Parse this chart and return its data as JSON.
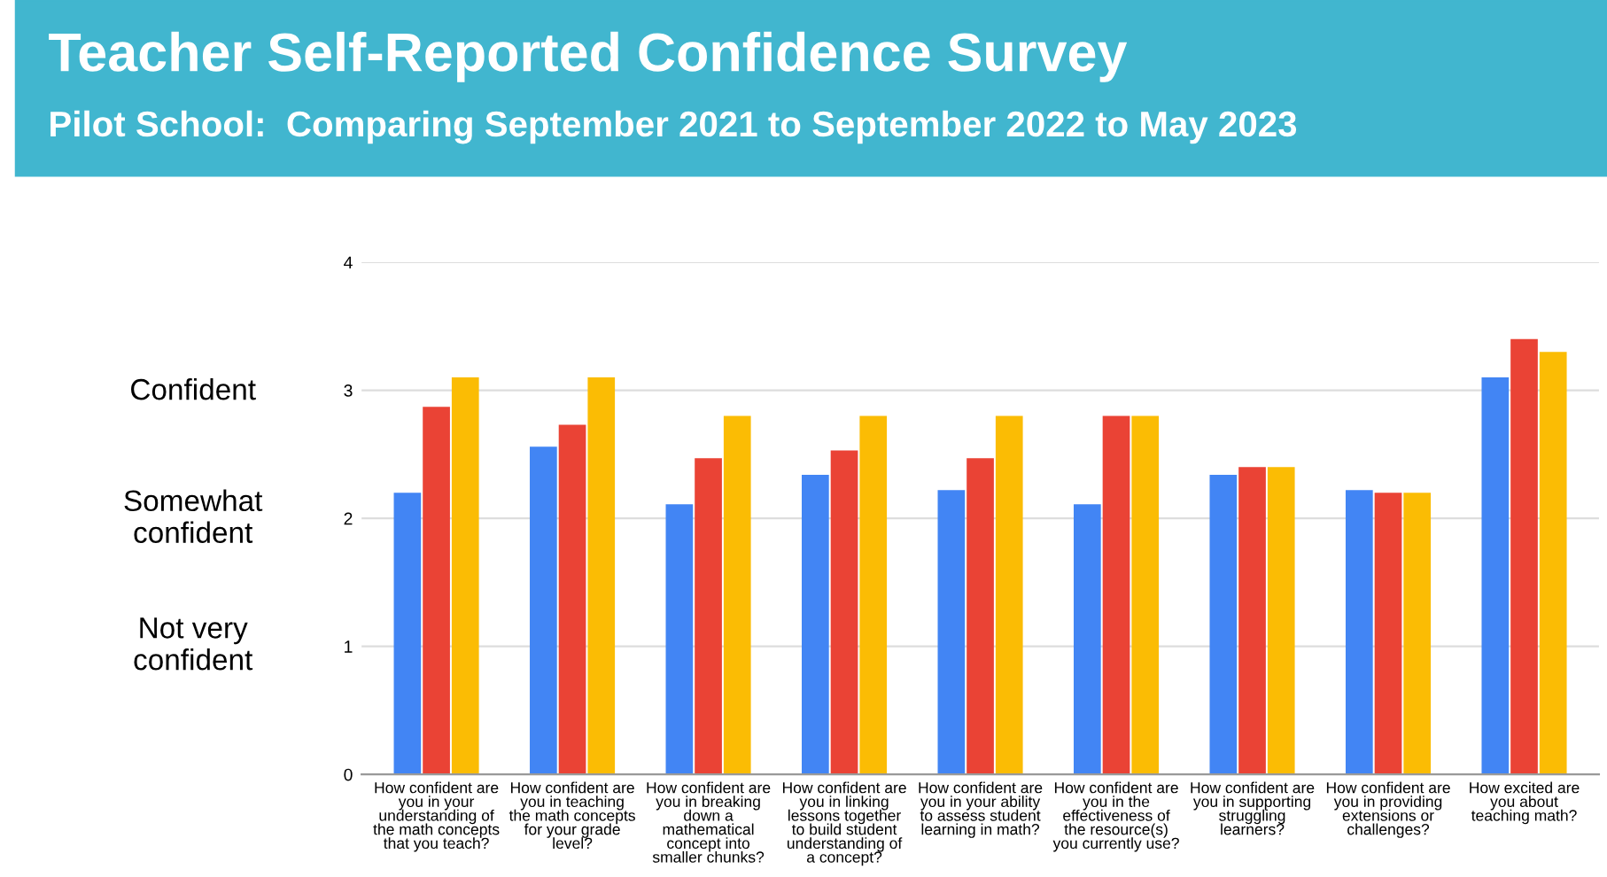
{
  "chart_data": {
    "type": "bar",
    "title": "Teacher Self-Reported Confidence Survey",
    "subtitle": "Pilot School:  Comparing September 2021 to September 2022 to May 2023",
    "categories": [
      "How confident are\nyou in your\nunderstanding of\nthe math concepts\nthat you teach?",
      "How confident are\nyou in teaching\nthe math concepts\nfor your grade\nlevel?",
      "How confident are\nyou in breaking\ndown a\nmathematical\nconcept into\nsmaller chunks?",
      "How confident are\nyou in linking\nlessons together\nto build student\nunderstanding of\na concept?",
      "How confident are\nyou in your ability\nto assess student\nlearning in math?",
      "How confident are\nyou in the\neffectiveness of\nthe resource(s)\nyou currently use?",
      "How confident are\nyou in supporting\nstruggling\nlearners?",
      "How confident are\nyou in providing\nextensions or\nchallenges?",
      "How excited are\nyou about\nteaching math?"
    ],
    "series": [
      {
        "color": "#4285f4",
        "values": [
          2.2,
          2.56,
          2.11,
          2.34,
          2.22,
          2.11,
          2.34,
          2.22,
          3.1
        ]
      },
      {
        "color": "#ea4335",
        "values": [
          2.87,
          2.73,
          2.47,
          2.53,
          2.47,
          2.8,
          2.4,
          2.2,
          3.4
        ]
      },
      {
        "color": "#fbbc04",
        "values": [
          3.1,
          3.1,
          2.8,
          2.8,
          2.8,
          2.8,
          2.4,
          2.2,
          3.3
        ]
      }
    ],
    "ylim": [
      0,
      4
    ],
    "yticks": [
      0,
      1,
      2,
      3,
      4
    ],
    "grid": "y",
    "annotations": [
      "Confident",
      "Somewhat\nconfident",
      "Not very\nconfident"
    ]
  }
}
